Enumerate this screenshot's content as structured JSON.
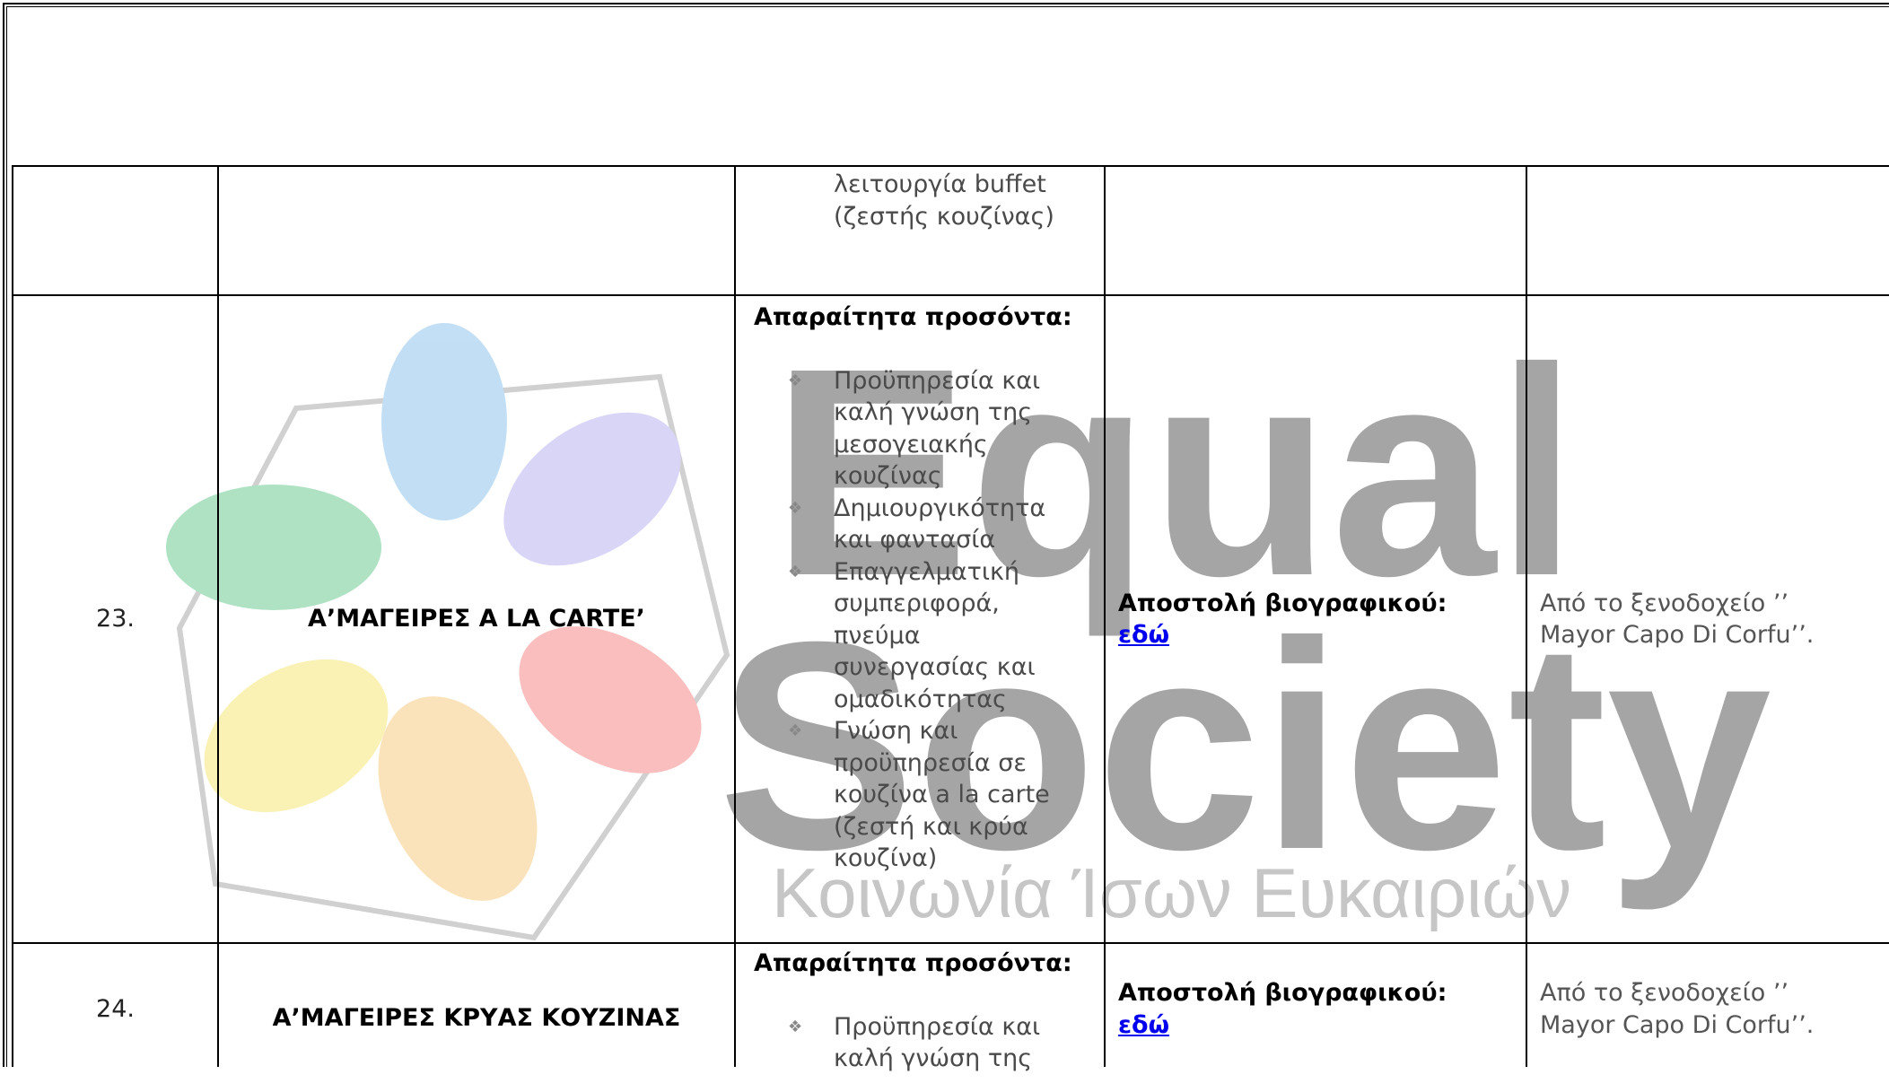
{
  "watermark": {
    "title_line_1": "Equal",
    "title_line_2": "Society",
    "subtitle": "Κοινωνία Ίσων Ευκαιριών"
  },
  "table": {
    "rows": [
      {
        "requirements_continued": "λειτουργία buffet (ζεστής κουζίνας)"
      },
      {
        "number": "23.",
        "title": "Α’ΜΑΓΕΙΡΕΣ  A LA CARTE’",
        "requirements_heading": "Απαραίτητα προσόντα:",
        "requirements": [
          "Προϋπηρεσία και καλή γνώση της μεσογειακής κουζίνας",
          "Δημιουργικότητα και φαντασία",
          "Επαγγελματική συμπεριφορά, πνεύμα συνεργασίας και ομαδικότητας",
          "Γνώση και προϋπηρεσία σε κουζίνα a la carte (ζεστή και κρύα κουζίνα)"
        ],
        "application_label": "Αποστολή βιογραφικού:",
        "application_link": "εδώ",
        "source": "Από το ξενοδοχείο ’’ Mayor Capo Di Corfu’’."
      },
      {
        "number": "24.",
        "title": "Α’ΜΑΓΕΙΡΕΣ  ΚΡΥΑΣ ΚΟΥΖΙΝΑΣ",
        "requirements_heading": "Απαραίτητα προσόντα:",
        "requirements": [
          "Προϋπηρεσία και καλή γνώση της"
        ],
        "application_label": "Αποστολή βιογραφικού:",
        "application_link": "εδώ",
        "source": "Από το ξενοδοχείο ’’ Mayor Capo Di Corfu’’."
      }
    ]
  }
}
